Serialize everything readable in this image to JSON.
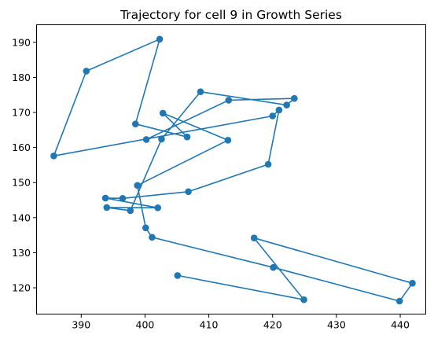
{
  "chart_data": {
    "type": "line",
    "title": "Trajectory for cell 9 in Growth Series",
    "xlabel": "",
    "ylabel": "",
    "xlim": [
      383.0,
      444.0
    ],
    "ylim": [
      112.5,
      195.0
    ],
    "xticks": [
      390,
      400,
      410,
      420,
      430,
      440
    ],
    "yticks": [
      120,
      130,
      140,
      150,
      160,
      170,
      180,
      190
    ],
    "grid": false,
    "series": [
      {
        "color": "#1f77b4",
        "marker": "circle",
        "points": [
          {
            "x": 405.1,
            "y": 123.5
          },
          {
            "x": 424.9,
            "y": 116.6
          },
          {
            "x": 417.1,
            "y": 134.2
          },
          {
            "x": 441.9,
            "y": 121.3
          },
          {
            "x": 439.9,
            "y": 116.2
          },
          {
            "x": 420.1,
            "y": 125.8
          },
          {
            "x": 401.1,
            "y": 134.4
          },
          {
            "x": 400.1,
            "y": 137.1
          },
          {
            "x": 398.8,
            "y": 149.2
          },
          {
            "x": 413.0,
            "y": 162.1
          },
          {
            "x": 402.8,
            "y": 169.8
          },
          {
            "x": 406.6,
            "y": 163.0
          },
          {
            "x": 398.5,
            "y": 166.7
          },
          {
            "x": 402.3,
            "y": 190.9
          },
          {
            "x": 390.8,
            "y": 181.8
          },
          {
            "x": 385.7,
            "y": 157.6
          },
          {
            "x": 420.0,
            "y": 169.0
          },
          {
            "x": 421.0,
            "y": 170.7
          },
          {
            "x": 419.3,
            "y": 155.2
          },
          {
            "x": 406.8,
            "y": 147.4
          },
          {
            "x": 396.5,
            "y": 145.5
          },
          {
            "x": 393.8,
            "y": 145.6
          },
          {
            "x": 402.0,
            "y": 142.8
          },
          {
            "x": 394.0,
            "y": 142.9
          },
          {
            "x": 397.7,
            "y": 142.0
          },
          {
            "x": 402.6,
            "y": 162.4
          },
          {
            "x": 408.7,
            "y": 175.9
          },
          {
            "x": 422.2,
            "y": 172.1
          },
          {
            "x": 423.4,
            "y": 174.0
          },
          {
            "x": 413.1,
            "y": 173.5
          },
          {
            "x": 400.2,
            "y": 162.3
          }
        ]
      }
    ]
  }
}
